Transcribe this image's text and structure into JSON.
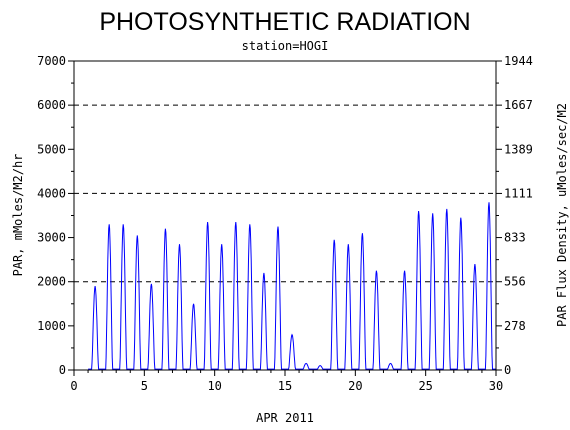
{
  "chart_data": {
    "type": "line",
    "title": "PHOTOSYNTHETIC RADIATION",
    "subtitle": "station=HOGI",
    "xlabel": "APR 2011",
    "ylabel_left": "PAR, mMoles/M2/hr",
    "ylabel_right": "PAR Flux Density, uMoles/sec/M2",
    "xlim": [
      0,
      30
    ],
    "ylim": [
      0,
      7000
    ],
    "x_ticks": [
      "0",
      "5",
      "10",
      "15",
      "20",
      "25",
      "30"
    ],
    "y_ticks_left": [
      "0",
      "1000",
      "2000",
      "3000",
      "4000",
      "5000",
      "6000",
      "7000"
    ],
    "y_ticks_right": [
      "0",
      "278",
      "556",
      "833",
      "1111",
      "1389",
      "1667",
      "1944"
    ],
    "reference_lines": [
      2000,
      4000,
      6000
    ],
    "grid": false,
    "line_color": "#0000ff",
    "daily_peaks": [
      {
        "day": 1,
        "peak": 1900
      },
      {
        "day": 2,
        "peak": 3300
      },
      {
        "day": 3,
        "peak": 3300
      },
      {
        "day": 4,
        "peak": 3050
      },
      {
        "day": 5,
        "peak": 1950
      },
      {
        "day": 6,
        "peak": 3200
      },
      {
        "day": 7,
        "peak": 2850
      },
      {
        "day": 8,
        "peak": 1500
      },
      {
        "day": 9,
        "peak": 3350
      },
      {
        "day": 10,
        "peak": 2850
      },
      {
        "day": 11,
        "peak": 3350
      },
      {
        "day": 12,
        "peak": 3300
      },
      {
        "day": 13,
        "peak": 2200
      },
      {
        "day": 14,
        "peak": 3250
      },
      {
        "day": 15,
        "peak": 800
      },
      {
        "day": 16,
        "peak": 150
      },
      {
        "day": 17,
        "peak": 100
      },
      {
        "day": 18,
        "peak": 2950
      },
      {
        "day": 19,
        "peak": 2850
      },
      {
        "day": 20,
        "peak": 3100
      },
      {
        "day": 21,
        "peak": 2250
      },
      {
        "day": 22,
        "peak": 150
      },
      {
        "day": 23,
        "peak": 2250
      },
      {
        "day": 24,
        "peak": 3600
      },
      {
        "day": 25,
        "peak": 3550
      },
      {
        "day": 26,
        "peak": 3650
      },
      {
        "day": 27,
        "peak": 3450
      },
      {
        "day": 28,
        "peak": 2400
      },
      {
        "day": 29,
        "peak": 3800
      }
    ]
  }
}
